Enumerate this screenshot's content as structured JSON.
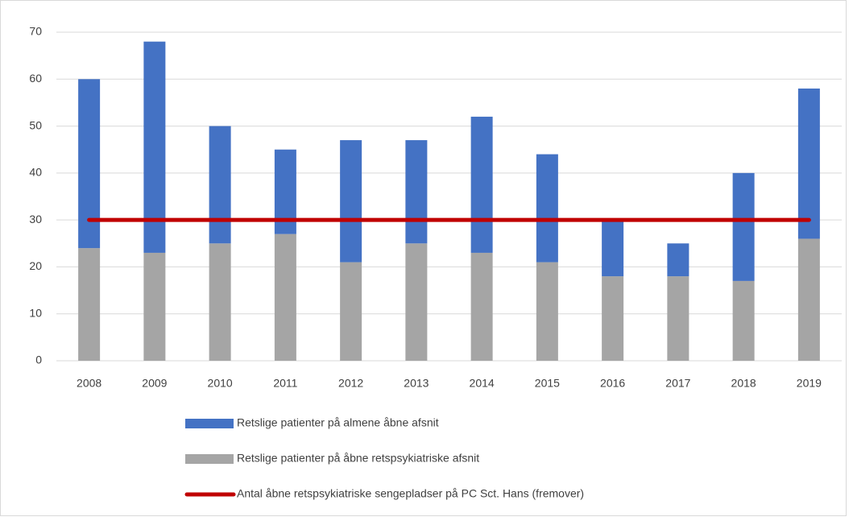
{
  "chart_data": {
    "type": "bar",
    "categories": [
      "2008",
      "2009",
      "2010",
      "2011",
      "2012",
      "2013",
      "2014",
      "2015",
      "2016",
      "2017",
      "2018",
      "2019"
    ],
    "series": [
      {
        "name": "Retslige patienter på almene åbne afsnit",
        "color": "#4472c4",
        "type": "bar",
        "values": [
          36,
          45,
          25,
          18,
          26,
          22,
          29,
          23,
          12,
          7,
          23,
          32
        ]
      },
      {
        "name": "Retslige patienter på åbne retspsykiatriske afsnit",
        "color": "#a5a5a5",
        "type": "bar",
        "values": [
          24,
          23,
          25,
          27,
          21,
          25,
          23,
          21,
          18,
          18,
          17,
          26
        ]
      },
      {
        "name": "Antal åbne retspsykiatriske sengepladser på PC Sct. Hans (fremover)",
        "color": "#c00000",
        "type": "line",
        "values": [
          30,
          30,
          30,
          30,
          30,
          30,
          30,
          30,
          30,
          30,
          30,
          30
        ]
      }
    ],
    "stacked": true,
    "ylim": [
      0,
      70
    ],
    "yticks": [
      0,
      10,
      20,
      30,
      40,
      50,
      60,
      70
    ],
    "grid": true
  }
}
